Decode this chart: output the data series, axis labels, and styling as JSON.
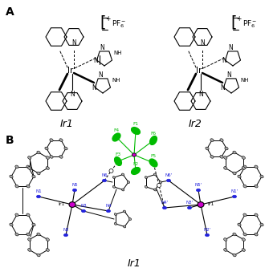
{
  "figure_width": 3.35,
  "figure_height": 3.39,
  "dpi": 100,
  "background_color": "#ffffff",
  "panel_A_label": "A",
  "panel_B_label": "B",
  "label_Ir1": "Ir1",
  "label_Ir2": "Ir2",
  "label_Ir1_bottom": "Ir1",
  "label_fontsize": 10,
  "compound_label_fontsize": 9,
  "label_fontweight": "bold",
  "text_color": "#000000",
  "img_encoded": ""
}
